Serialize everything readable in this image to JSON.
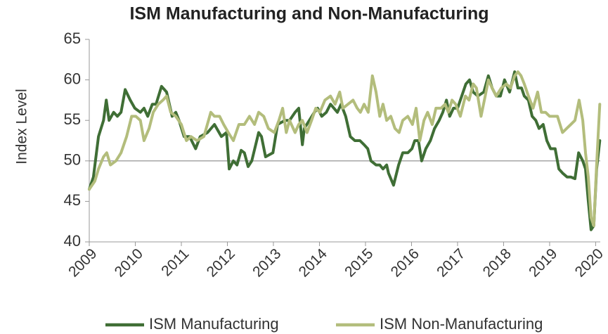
{
  "chart_data": {
    "type": "line",
    "title": "ISM Manufacturing and Non-Manufacturing",
    "y_label": "Index Level",
    "xlim": [
      2009,
      2020.1
    ],
    "xticks": [
      2009,
      2010,
      2011,
      2012,
      2013,
      2014,
      2015,
      2016,
      2017,
      2018,
      2019,
      2020
    ],
    "ylim": [
      40,
      65
    ],
    "yticks": [
      40,
      45,
      50,
      55,
      60,
      65
    ],
    "reference_line": 50,
    "legend": "bottom",
    "series": [
      {
        "name": "ISM Manufacturing",
        "color": "#3f6e35",
        "x": [
          2009.0,
          2009.09,
          2009.2,
          2009.31,
          2009.37,
          2009.43,
          2009.53,
          2009.61,
          2009.69,
          2009.78,
          2009.89,
          2009.99,
          2010.11,
          2010.19,
          2010.27,
          2010.37,
          2010.45,
          2010.57,
          2010.68,
          2010.8,
          2010.88,
          2010.95,
          2011.06,
          2011.18,
          2011.31,
          2011.41,
          2011.57,
          2011.72,
          2011.87,
          2011.98,
          2012.04,
          2012.13,
          2012.21,
          2012.3,
          2012.37,
          2012.45,
          2012.53,
          2012.68,
          2012.74,
          2012.83,
          2012.99,
          2013.09,
          2013.25,
          2013.35,
          2013.47,
          2013.55,
          2013.63,
          2013.67,
          2013.78,
          2013.89,
          2013.96,
          2014.05,
          2014.15,
          2014.24,
          2014.39,
          2014.47,
          2014.57,
          2014.67,
          2014.77,
          2014.88,
          2014.97,
          2015.05,
          2015.12,
          2015.23,
          2015.31,
          2015.38,
          2015.46,
          2015.5,
          2015.61,
          2015.72,
          2015.81,
          2015.92,
          2016.01,
          2016.07,
          2016.15,
          2016.22,
          2016.31,
          2016.41,
          2016.5,
          2016.6,
          2016.68,
          2016.76,
          2016.83,
          2016.91,
          2017.0,
          2017.09,
          2017.18,
          2017.26,
          2017.34,
          2017.44,
          2017.57,
          2017.67,
          2017.75,
          2017.84,
          2017.93,
          2018.02,
          2018.13,
          2018.24,
          2018.31,
          2018.39,
          2018.45,
          2018.54,
          2018.62,
          2018.7,
          2018.77,
          2018.86,
          2018.94,
          2019.02,
          2019.12,
          2019.2,
          2019.28,
          2019.38,
          2019.46,
          2019.55,
          2019.63,
          2019.72,
          2019.78,
          2019.84,
          2019.9,
          2019.96,
          2020.02,
          2020.09
        ],
        "values": [
          46.5,
          48,
          53,
          55,
          57.5,
          55,
          56,
          55.5,
          56,
          58.8,
          57.5,
          56.5,
          56,
          56.5,
          55.5,
          57,
          57,
          59.2,
          58.5,
          55.5,
          56,
          55,
          53,
          53,
          51.5,
          53,
          53.5,
          54.5,
          53,
          53.5,
          49,
          50,
          49.5,
          51.3,
          51,
          49.3,
          50,
          53.5,
          53,
          50.5,
          51,
          54.5,
          55,
          55,
          56,
          56.5,
          52,
          54,
          55,
          56,
          56.5,
          55.5,
          56,
          57,
          56,
          57,
          55.5,
          53,
          52.5,
          52.5,
          52,
          51.5,
          50,
          49.5,
          49.5,
          49,
          49.5,
          48.5,
          47,
          49.5,
          51,
          51,
          51.5,
          52.5,
          52.5,
          50,
          51.5,
          52.5,
          54,
          55,
          56,
          57.5,
          55.5,
          56.5,
          56.5,
          58,
          59.5,
          60,
          58.5,
          58,
          58.5,
          60.5,
          59,
          58,
          58,
          60,
          58.5,
          61,
          59,
          59,
          58,
          57.5,
          55.5,
          55,
          54,
          54.5,
          52.5,
          51.5,
          51.5,
          49,
          48.5,
          48,
          48,
          47.8,
          51,
          50,
          49,
          45,
          41.5,
          42,
          49,
          52.5
        ]
      },
      {
        "name": "ISM Non-Manufacturing",
        "color": "#b3bd7c",
        "x": [
          2009.0,
          2009.12,
          2009.2,
          2009.31,
          2009.38,
          2009.46,
          2009.58,
          2009.69,
          2009.81,
          2009.92,
          2010.01,
          2010.11,
          2010.19,
          2010.3,
          2010.39,
          2010.5,
          2010.6,
          2010.68,
          2010.77,
          2010.88,
          2011.0,
          2011.11,
          2011.21,
          2011.34,
          2011.49,
          2011.64,
          2011.72,
          2011.83,
          2011.92,
          2012.02,
          2012.13,
          2012.25,
          2012.37,
          2012.48,
          2012.59,
          2012.68,
          2012.79,
          2012.89,
          2013.02,
          2013.12,
          2013.2,
          2013.28,
          2013.35,
          2013.47,
          2013.55,
          2013.63,
          2013.73,
          2013.83,
          2013.92,
          2014.01,
          2014.12,
          2014.24,
          2014.34,
          2014.44,
          2014.51,
          2014.62,
          2014.73,
          2014.82,
          2014.89,
          2014.97,
          2015.06,
          2015.15,
          2015.23,
          2015.31,
          2015.38,
          2015.46,
          2015.55,
          2015.64,
          2015.73,
          2015.81,
          2015.92,
          2016.02,
          2016.1,
          2016.18,
          2016.27,
          2016.35,
          2016.45,
          2016.53,
          2016.64,
          2016.73,
          2016.8,
          2016.88,
          2016.96,
          2017.06,
          2017.17,
          2017.25,
          2017.34,
          2017.41,
          2017.51,
          2017.6,
          2017.67,
          2017.75,
          2017.84,
          2017.95,
          2018.06,
          2018.15,
          2018.24,
          2018.31,
          2018.38,
          2018.45,
          2018.54,
          2018.64,
          2018.74,
          2018.82,
          2018.91,
          2019.0,
          2019.09,
          2019.17,
          2019.28,
          2019.37,
          2019.46,
          2019.55,
          2019.64,
          2019.72,
          2019.78,
          2019.84,
          2019.9,
          2019.96,
          2020.02,
          2020.09
        ],
        "values": [
          46.5,
          47.5,
          49,
          50.5,
          51,
          49.5,
          50,
          51,
          53,
          55.5,
          55.5,
          55,
          52.5,
          54,
          56,
          57,
          57.5,
          58,
          56,
          55.5,
          54.5,
          52.5,
          53,
          52.5,
          53,
          56,
          55.5,
          55.5,
          54.5,
          53.5,
          52.5,
          54.5,
          54.5,
          55.5,
          54.5,
          56,
          55.5,
          54,
          53.5,
          55,
          56.5,
          53.5,
          55,
          53.5,
          54.5,
          55,
          53.5,
          55,
          56.5,
          56,
          57.5,
          58,
          57,
          58.5,
          56.5,
          57,
          57.5,
          56.5,
          56,
          57,
          56,
          60.5,
          58.5,
          55.5,
          57,
          55,
          55.5,
          54,
          53.5,
          55,
          55.5,
          54.5,
          56.5,
          52.5,
          55,
          56,
          54.5,
          56.5,
          56.5,
          57,
          56,
          57.5,
          57,
          55.5,
          58,
          57.5,
          59.5,
          59,
          55.5,
          58,
          60,
          59,
          58,
          59,
          59.5,
          59,
          60.5,
          61,
          60.5,
          59.5,
          58,
          56.5,
          58.5,
          56,
          56,
          55.5,
          55.5,
          55.5,
          53.5,
          54,
          54.5,
          55,
          57.5,
          55,
          51,
          48,
          43,
          42,
          49.5,
          57
        ]
      }
    ]
  }
}
